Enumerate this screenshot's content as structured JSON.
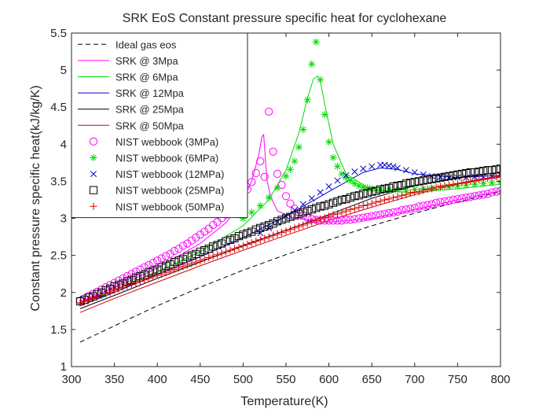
{
  "chart_data": {
    "type": "line",
    "title": "SRK EoS Constant pressure specific heat for cyclohexane",
    "xlabel": "Temperature(K)",
    "ylabel": "Constant pressure specific heat(kJ/kg/K)",
    "xlim": [
      300,
      800
    ],
    "ylim": [
      1,
      5.5
    ],
    "xticks": [
      300,
      350,
      400,
      450,
      500,
      550,
      600,
      650,
      700,
      750,
      800
    ],
    "yticks": [
      1,
      1.5,
      2,
      2.5,
      3,
      3.5,
      4,
      4.5,
      5,
      5.5
    ],
    "ytick_labels": [
      "1",
      "1.5",
      "2",
      "2.5",
      "3",
      "3.5",
      "4",
      "4.5",
      "5",
      "5.5"
    ],
    "grid": false,
    "legend_position": "top-left",
    "series": [
      {
        "name": "Ideal gas eos",
        "kind": "line",
        "dash": "dashed",
        "color": "#000000",
        "x": [
          310,
          350,
          400,
          450,
          500,
          550,
          600,
          650,
          700,
          750,
          800
        ],
        "y": [
          1.33,
          1.55,
          1.82,
          2.07,
          2.3,
          2.51,
          2.71,
          2.9,
          3.07,
          3.22,
          3.36
        ]
      },
      {
        "name": "SRK @ 3Mpa",
        "kind": "line",
        "dash": "solid",
        "color": "#ff00ff",
        "x": [
          310,
          350,
          400,
          450,
          480,
          500,
          510,
          518,
          522,
          524,
          526,
          528,
          532,
          540,
          560,
          600,
          650,
          700,
          750,
          800
        ],
        "y": [
          1.87,
          2.06,
          2.33,
          2.66,
          2.94,
          3.25,
          3.5,
          3.85,
          4.1,
          4.13,
          3.8,
          3.5,
          3.3,
          3.1,
          3.0,
          2.95,
          3.0,
          3.12,
          3.25,
          3.37
        ]
      },
      {
        "name": "SRK @ 6Mpa",
        "kind": "line",
        "dash": "solid",
        "color": "#00dd00",
        "x": [
          310,
          350,
          400,
          450,
          500,
          530,
          550,
          565,
          575,
          582,
          587,
          590,
          595,
          605,
          620,
          650,
          700,
          750,
          800
        ],
        "y": [
          1.85,
          2.03,
          2.28,
          2.55,
          2.9,
          3.25,
          3.65,
          4.15,
          4.62,
          4.88,
          4.92,
          4.85,
          4.55,
          4.0,
          3.6,
          3.38,
          3.35,
          3.4,
          3.46
        ]
      },
      {
        "name": "SRK @ 12Mpa",
        "kind": "line",
        "dash": "solid",
        "color": "#0000cc",
        "x": [
          310,
          350,
          400,
          450,
          500,
          550,
          600,
          640,
          660,
          680,
          700,
          750,
          800
        ],
        "y": [
          1.82,
          2.0,
          2.24,
          2.48,
          2.74,
          3.03,
          3.36,
          3.62,
          3.68,
          3.66,
          3.6,
          3.55,
          3.58
        ]
      },
      {
        "name": "SRK @ 25Mpa",
        "kind": "line",
        "dash": "solid",
        "color": "#000000",
        "x": [
          310,
          350,
          400,
          450,
          500,
          550,
          600,
          650,
          700,
          750,
          800
        ],
        "y": [
          1.78,
          1.96,
          2.19,
          2.41,
          2.63,
          2.84,
          3.05,
          3.27,
          3.44,
          3.55,
          3.62
        ]
      },
      {
        "name": "SRK @ 50Mpa",
        "kind": "line",
        "dash": "solid",
        "color": "#dd0000",
        "x": [
          310,
          350,
          400,
          450,
          500,
          550,
          600,
          650,
          700,
          750,
          800
        ],
        "y": [
          1.73,
          1.92,
          2.14,
          2.36,
          2.57,
          2.77,
          2.97,
          3.15,
          3.32,
          3.46,
          3.56
        ]
      },
      {
        "name": "NIST webbook (3MPa)",
        "kind": "marker",
        "marker": "circle",
        "color": "#ff00ff",
        "x": [
          310,
          315,
          320,
          325,
          330,
          335,
          340,
          345,
          350,
          355,
          360,
          365,
          370,
          375,
          380,
          385,
          390,
          395,
          400,
          405,
          410,
          415,
          420,
          425,
          430,
          435,
          440,
          445,
          450,
          455,
          460,
          465,
          470,
          475,
          480,
          485,
          490,
          495,
          500,
          505,
          510,
          515,
          520,
          525,
          530,
          535,
          540,
          545,
          550,
          555,
          560,
          565,
          570,
          575,
          580,
          585,
          590,
          595,
          600,
          605,
          610,
          615,
          620,
          625,
          630,
          635,
          640,
          645,
          650,
          655,
          660,
          665,
          670,
          675,
          680,
          685,
          690,
          695,
          700,
          705,
          710,
          715,
          720,
          725,
          730,
          735,
          740,
          745,
          750,
          755,
          760,
          765,
          770,
          775,
          780,
          785,
          790,
          795,
          800
        ],
        "y": [
          1.89,
          1.92,
          1.95,
          1.98,
          2.01,
          2.04,
          2.07,
          2.1,
          2.13,
          2.16,
          2.19,
          2.22,
          2.25,
          2.28,
          2.31,
          2.34,
          2.37,
          2.4,
          2.43,
          2.46,
          2.49,
          2.52,
          2.56,
          2.59,
          2.63,
          2.66,
          2.7,
          2.74,
          2.78,
          2.82,
          2.86,
          2.91,
          2.95,
          3.0,
          3.05,
          3.11,
          3.17,
          3.24,
          3.31,
          3.39,
          3.49,
          3.61,
          3.77,
          3.56,
          4.44,
          3.9,
          3.6,
          3.45,
          3.3,
          3.2,
          3.13,
          3.08,
          3.04,
          3.01,
          2.99,
          2.98,
          2.97,
          2.97,
          2.97,
          2.97,
          2.97,
          2.97,
          2.98,
          2.98,
          2.99,
          3.0,
          3.01,
          3.02,
          3.03,
          3.04,
          3.05,
          3.06,
          3.07,
          3.08,
          3.09,
          3.11,
          3.12,
          3.13,
          3.14,
          3.16,
          3.17,
          3.18,
          3.19,
          3.21,
          3.22,
          3.23,
          3.24,
          3.25,
          3.26,
          3.27,
          3.28,
          3.29,
          3.3,
          3.31,
          3.32,
          3.33,
          3.35,
          3.36,
          3.37
        ]
      },
      {
        "name": "NIST webbook (6MPa)",
        "kind": "marker",
        "marker": "asterisk",
        "color": "#00dd00",
        "x": [
          500,
          510,
          520,
          530,
          540,
          550,
          555,
          560,
          565,
          570,
          575,
          580,
          585,
          590,
          595,
          600,
          605,
          610,
          615,
          620,
          625,
          630,
          635,
          640,
          645,
          650,
          660,
          670,
          680,
          690,
          700,
          710,
          720,
          730,
          740,
          750,
          760,
          770,
          780,
          790,
          800
        ],
        "y": [
          3.0,
          3.08,
          3.17,
          3.28,
          3.41,
          3.57,
          3.66,
          3.77,
          3.96,
          4.2,
          4.6,
          5.08,
          5.38,
          4.87,
          4.4,
          4.03,
          3.82,
          3.7,
          3.6,
          3.55,
          3.51,
          3.47,
          3.44,
          3.42,
          3.41,
          3.4,
          3.39,
          3.38,
          3.38,
          3.38,
          3.39,
          3.4,
          3.41,
          3.42,
          3.43,
          3.44,
          3.45,
          3.46,
          3.47,
          3.48,
          3.49
        ]
      },
      {
        "name": "NIST webbook (12MPa)",
        "kind": "marker",
        "marker": "x",
        "color": "#0000cc",
        "x": [
          520,
          530,
          540,
          550,
          560,
          570,
          580,
          590,
          600,
          610,
          620,
          630,
          640,
          650,
          660,
          665,
          670,
          675,
          680,
          690,
          700,
          710,
          720,
          730,
          740,
          750,
          760,
          770,
          780,
          790,
          800
        ],
        "y": [
          2.8,
          2.87,
          2.95,
          3.03,
          3.11,
          3.19,
          3.27,
          3.35,
          3.43,
          3.51,
          3.58,
          3.63,
          3.67,
          3.7,
          3.72,
          3.72,
          3.71,
          3.7,
          3.68,
          3.65,
          3.62,
          3.59,
          3.57,
          3.56,
          3.55,
          3.55,
          3.55,
          3.56,
          3.56,
          3.57,
          3.58
        ]
      },
      {
        "name": "NIST webbook (25MPa)",
        "kind": "marker",
        "marker": "square",
        "color": "#000000",
        "x": [
          310,
          315,
          320,
          325,
          330,
          335,
          340,
          345,
          350,
          355,
          360,
          365,
          370,
          375,
          380,
          385,
          390,
          395,
          400,
          405,
          410,
          415,
          420,
          425,
          430,
          435,
          440,
          445,
          450,
          455,
          460,
          465,
          470,
          475,
          480,
          485,
          490,
          495,
          500,
          505,
          510,
          515,
          520,
          525,
          530,
          535,
          540,
          545,
          550,
          555,
          560,
          565,
          570,
          575,
          580,
          585,
          590,
          595,
          600,
          605,
          610,
          615,
          620,
          625,
          630,
          635,
          640,
          645,
          650,
          655,
          660,
          665,
          670,
          675,
          680,
          685,
          690,
          695,
          700,
          705,
          710,
          715,
          720,
          725,
          730,
          735,
          740,
          745,
          750,
          755,
          760,
          765,
          770,
          775,
          780,
          785,
          790,
          795,
          800
        ],
        "y": [
          1.88,
          1.9,
          1.93,
          1.95,
          1.98,
          2.0,
          2.03,
          2.05,
          2.08,
          2.1,
          2.12,
          2.15,
          2.17,
          2.2,
          2.22,
          2.24,
          2.27,
          2.29,
          2.31,
          2.34,
          2.36,
          2.38,
          2.41,
          2.43,
          2.45,
          2.48,
          2.5,
          2.52,
          2.55,
          2.57,
          2.59,
          2.62,
          2.64,
          2.66,
          2.69,
          2.71,
          2.73,
          2.76,
          2.78,
          2.8,
          2.82,
          2.85,
          2.87,
          2.89,
          2.91,
          2.93,
          2.96,
          2.98,
          3.0,
          3.02,
          3.04,
          3.06,
          3.08,
          3.1,
          3.12,
          3.14,
          3.16,
          3.17,
          3.19,
          3.21,
          3.23,
          3.25,
          3.26,
          3.28,
          3.3,
          3.31,
          3.33,
          3.34,
          3.36,
          3.37,
          3.39,
          3.4,
          3.41,
          3.43,
          3.44,
          3.45,
          3.47,
          3.48,
          3.49,
          3.5,
          3.51,
          3.52,
          3.53,
          3.54,
          3.55,
          3.56,
          3.57,
          3.58,
          3.59,
          3.6,
          3.61,
          3.62,
          3.62,
          3.63,
          3.64,
          3.65,
          3.65,
          3.66,
          3.67
        ]
      },
      {
        "name": "NIST webbook (50MPa)",
        "kind": "marker",
        "marker": "plus",
        "color": "#dd0000",
        "x": [
          310,
          315,
          320,
          325,
          330,
          335,
          340,
          345,
          350,
          355,
          360,
          365,
          370,
          375,
          380,
          385,
          390,
          395,
          400,
          405,
          410,
          415,
          420,
          425,
          430,
          435,
          440,
          445,
          450,
          455,
          460,
          465,
          470,
          475,
          480,
          485,
          490,
          495,
          500,
          505,
          510,
          515,
          520,
          525,
          530,
          535,
          540,
          545,
          550,
          555,
          560,
          565,
          570,
          575,
          580,
          585,
          590,
          595,
          600,
          605,
          610,
          615,
          620,
          625,
          630,
          635,
          640,
          645,
          650,
          655,
          660,
          665,
          670,
          675,
          680,
          685,
          690,
          695,
          700,
          705,
          710,
          715,
          720,
          725,
          730,
          735,
          740,
          745,
          750,
          755,
          760,
          765,
          770,
          775,
          780,
          785,
          790,
          795,
          800
        ],
        "y": [
          1.86,
          1.88,
          1.9,
          1.92,
          1.94,
          1.96,
          1.98,
          2.0,
          2.03,
          2.05,
          2.07,
          2.09,
          2.11,
          2.13,
          2.15,
          2.17,
          2.19,
          2.21,
          2.23,
          2.25,
          2.27,
          2.29,
          2.31,
          2.33,
          2.35,
          2.37,
          2.39,
          2.41,
          2.43,
          2.45,
          2.47,
          2.49,
          2.51,
          2.53,
          2.55,
          2.57,
          2.59,
          2.61,
          2.63,
          2.65,
          2.67,
          2.69,
          2.71,
          2.73,
          2.75,
          2.77,
          2.79,
          2.81,
          2.83,
          2.85,
          2.87,
          2.89,
          2.91,
          2.93,
          2.95,
          2.97,
          2.99,
          3.01,
          3.03,
          3.05,
          3.06,
          3.08,
          3.1,
          3.12,
          3.13,
          3.15,
          3.17,
          3.18,
          3.2,
          3.22,
          3.23,
          3.25,
          3.26,
          3.28,
          3.29,
          3.31,
          3.32,
          3.34,
          3.35,
          3.36,
          3.38,
          3.39,
          3.4,
          3.42,
          3.43,
          3.44,
          3.45,
          3.46,
          3.47,
          3.48,
          3.49,
          3.5,
          3.51,
          3.52,
          3.53,
          3.54,
          3.55,
          3.56,
          3.57
        ]
      }
    ]
  }
}
